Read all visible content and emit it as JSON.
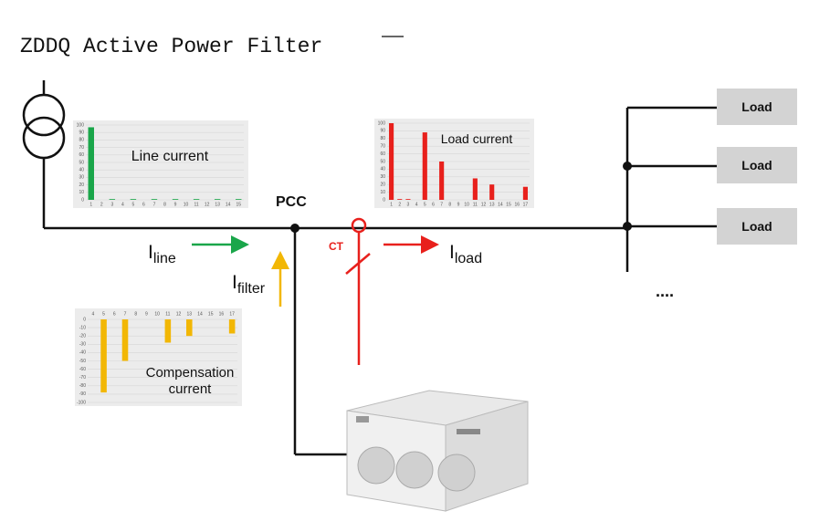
{
  "title": "ZDDQ Active Power Filter",
  "labels": {
    "pcc": "PCC",
    "ct": "CT",
    "i_line": {
      "symbol": "I",
      "subscript": "line"
    },
    "i_filter": {
      "symbol": "I",
      "subscript": "filter"
    },
    "i_load": {
      "symbol": "I",
      "subscript": "load"
    },
    "more_loads": "...."
  },
  "loads": [
    "Load",
    "Load",
    "Load"
  ],
  "charts": [
    {
      "type": "bar",
      "title_lines": [
        "Line current"
      ],
      "color": "#1aa64a",
      "categories": [
        "1",
        "2",
        "3",
        "4",
        "5",
        "6",
        "7",
        "8",
        "9",
        "10",
        "11",
        "12",
        "13",
        "14",
        "15"
      ],
      "values": [
        97,
        0,
        1,
        0,
        1,
        0,
        1,
        0,
        1,
        0,
        1,
        0,
        1,
        0,
        1
      ],
      "ylim": [
        0,
        100
      ],
      "yticks": [
        0,
        10,
        20,
        30,
        40,
        50,
        60,
        70,
        80,
        90,
        100
      ],
      "grid": true
    },
    {
      "type": "bar",
      "title_lines": [
        "Load current"
      ],
      "color": "#e8201c",
      "categories": [
        "1",
        "2",
        "3",
        "4",
        "5",
        "6",
        "7",
        "8",
        "9",
        "10",
        "11",
        "12",
        "13",
        "14",
        "15",
        "16",
        "17"
      ],
      "values": [
        100,
        1,
        1,
        0,
        88,
        0,
        50,
        0,
        0,
        0,
        28,
        0,
        20,
        0,
        0,
        0,
        17
      ],
      "ylim": [
        0,
        100
      ],
      "yticks": [
        0,
        10,
        20,
        30,
        40,
        50,
        60,
        70,
        80,
        90,
        100
      ],
      "grid": true
    },
    {
      "type": "bar",
      "title_lines": [
        "Compensation",
        "current"
      ],
      "color": "#f2b705",
      "categories": [
        "4",
        "5",
        "6",
        "7",
        "8",
        "9",
        "10",
        "11",
        "12",
        "13",
        "14",
        "15",
        "16",
        "17"
      ],
      "values": [
        0,
        -88,
        0,
        -50,
        0,
        0,
        0,
        -28,
        0,
        -20,
        0,
        0,
        0,
        -17
      ],
      "ylim": [
        -100,
        0
      ],
      "yticks": [
        0,
        -10,
        -20,
        -30,
        -40,
        -50,
        -60,
        -70,
        -80,
        -90,
        -100
      ],
      "grid": true
    }
  ]
}
